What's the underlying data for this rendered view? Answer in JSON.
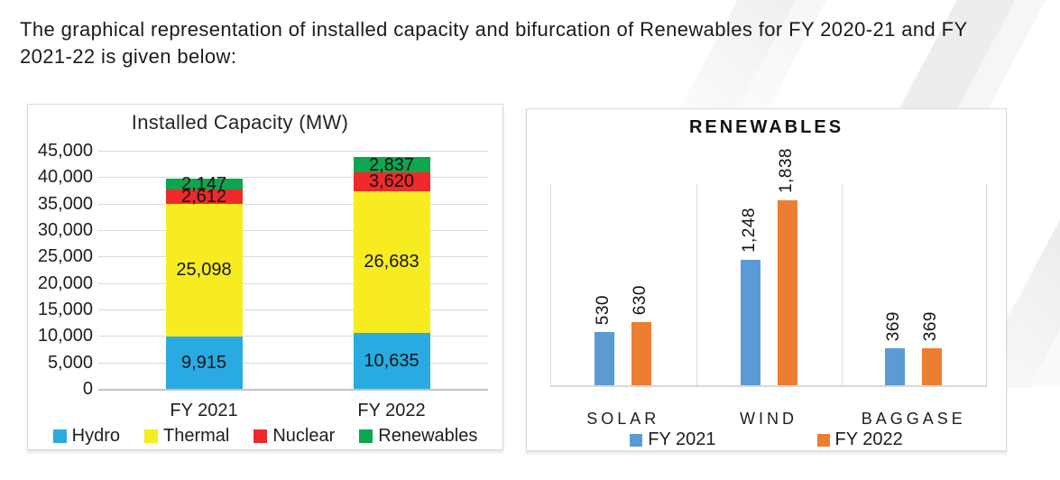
{
  "heading": {
    "line1": "The graphical representation of installed capacity and bifurcation of Renewables for FY 2020-21 and FY",
    "line2": "2021-22 is given below:"
  },
  "colors": {
    "hydro": "#29ABE2",
    "thermal": "#F7EC1F",
    "nuclear": "#EE2A2B",
    "renewables": "#0CA64F",
    "fy2021": "#5B9BD5",
    "fy2022": "#ED7D31",
    "gridline": "#D9D9D9",
    "text": "#1E1E1E"
  },
  "chart_data": [
    {
      "id": "installed-capacity",
      "type": "bar",
      "subtype": "stacked",
      "title": "Installed Capacity (MW)",
      "categories": [
        "FY 2021",
        "FY 2022"
      ],
      "series": [
        {
          "name": "Hydro",
          "color": "#29ABE2",
          "values": [
            9915,
            10635
          ],
          "labels": [
            "9,915",
            "10,635"
          ]
        },
        {
          "name": "Thermal",
          "color": "#F7EC1F",
          "values": [
            25098,
            26683
          ],
          "labels": [
            "25,098",
            "26,683"
          ]
        },
        {
          "name": "Nuclear",
          "color": "#EE2A2B",
          "values": [
            2612,
            3620
          ],
          "labels": [
            "2,612",
            "3,620"
          ]
        },
        {
          "name": "Renewables",
          "color": "#0CA64F",
          "values": [
            2147,
            2837
          ],
          "labels": [
            "2,147",
            "2,837"
          ]
        }
      ],
      "ylim": [
        0,
        45000
      ],
      "ytick_step": 5000,
      "yticks": [
        {
          "value": 45000,
          "label": "45,000"
        },
        {
          "value": 40000,
          "label": "40,000"
        },
        {
          "value": 35000,
          "label": "35,000"
        },
        {
          "value": 30000,
          "label": "30,000"
        },
        {
          "value": 25000,
          "label": "25,000"
        },
        {
          "value": 20000,
          "label": "20,000"
        },
        {
          "value": 15000,
          "label": "15,000"
        },
        {
          "value": 10000,
          "label": "10,000"
        },
        {
          "value": 5000,
          "label": "5,000"
        },
        {
          "value": 0,
          "label": "0"
        }
      ],
      "grid": "horizontal",
      "legend_position": "bottom"
    },
    {
      "id": "renewables",
      "type": "bar",
      "subtype": "grouped",
      "title": "RENEWABLES",
      "categories": [
        "SOLAR",
        "WIND",
        "BAGGASE"
      ],
      "series": [
        {
          "name": "FY 2021",
          "color": "#5B9BD5",
          "values": [
            530,
            1248,
            369
          ],
          "labels": [
            "530",
            "1,248",
            "369"
          ]
        },
        {
          "name": "FY 2022",
          "color": "#ED7D31",
          "values": [
            630,
            1838,
            369
          ],
          "labels": [
            "630",
            "1,838",
            "369"
          ]
        }
      ],
      "ylim": [
        0,
        2000
      ],
      "value_label_rotation": 90,
      "grid": "vertical-separators",
      "legend_position": "bottom"
    }
  ]
}
